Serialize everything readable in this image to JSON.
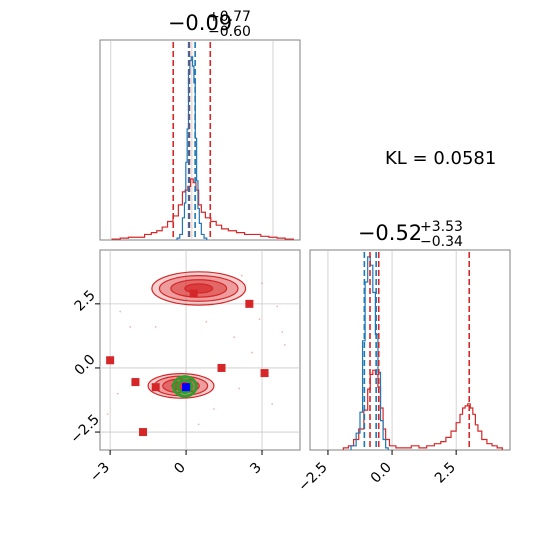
{
  "colors": {
    "red": "#d62728",
    "blue": "#1f77b4",
    "green": "#2ca02c",
    "marker_blue": "#0000ff",
    "grid": "#c8c8c8",
    "frame": "#808080"
  },
  "annotation": {
    "kl_text": "KL = 0.0581"
  },
  "chart_data": [
    {
      "type": "histogram",
      "panel": "top-left marginal",
      "title": {
        "main": "−0.09",
        "sup": "+0.77",
        "sub": "−0.60"
      },
      "xlim": [
        -3.4,
        4.0
      ],
      "grid": true,
      "tick_labels_shown": false,
      "series": [
        {
          "color": "#d62728",
          "bins": {
            "x": [
              -2.8,
              -2.5,
              -2.2,
              -1.9,
              -1.6,
              -1.4,
              -1.2,
              -1.0,
              -0.8,
              -0.6,
              -0.4,
              -0.3,
              -0.2,
              -0.1,
              0.0,
              0.1,
              0.2,
              0.3,
              0.4,
              0.6,
              0.8,
              1.0,
              1.2,
              1.5,
              1.8,
              2.1,
              2.4,
              2.7,
              3.0,
              3.3,
              3.6
            ],
            "h": [
              0.005,
              0.01,
              0.015,
              0.015,
              0.03,
              0.04,
              0.05,
              0.07,
              0.1,
              0.13,
              0.19,
              0.26,
              0.27,
              0.29,
              0.33,
              0.31,
              0.27,
              0.19,
              0.15,
              0.12,
              0.1,
              0.08,
              0.06,
              0.05,
              0.04,
              0.03,
              0.03,
              0.02,
              0.015,
              0.01,
              0.005
            ]
          }
        },
        {
          "color": "#1f77b4",
          "bins": {
            "x": [
              -0.5,
              -0.4,
              -0.3,
              -0.25,
              -0.2,
              -0.15,
              -0.1,
              -0.05,
              0.0,
              0.05,
              0.1,
              0.15,
              0.2,
              0.25,
              0.3,
              0.4,
              0.5
            ],
            "h": [
              0.01,
              0.03,
              0.12,
              0.2,
              0.42,
              0.6,
              0.9,
              0.97,
              0.99,
              0.94,
              0.85,
              0.55,
              0.32,
              0.17,
              0.09,
              0.03,
              0.01
            ]
          }
        }
      ],
      "vlines": [
        {
          "x": -0.69,
          "color": "#d62728"
        },
        {
          "x": -0.09,
          "color": "#d62728"
        },
        {
          "x": 0.68,
          "color": "#d62728"
        },
        {
          "x": -0.12,
          "color": "#1f77b4"
        },
        {
          "x": 0.12,
          "color": "#1f77b4"
        }
      ]
    },
    {
      "type": "scatter",
      "panel": "bottom-left joint",
      "xlim": [
        -3.4,
        4.5
      ],
      "ylim": [
        -3.2,
        4.6
      ],
      "xticks": [
        -3,
        0,
        3
      ],
      "xtick_labels": [
        "−3",
        "0",
        "3"
      ],
      "yticks": [
        -2.5,
        0.0,
        2.5
      ],
      "ytick_labels": [
        "−2.5",
        "0.0",
        "2.5"
      ],
      "grid": true,
      "density_regions": [
        {
          "color": "#d62728",
          "center": [
            0.5,
            3.1
          ],
          "radii": [
            [
              1.85,
              0.65
            ],
            [
              1.55,
              0.5
            ],
            [
              1.1,
              0.34
            ],
            [
              0.55,
              0.18
            ]
          ],
          "opacities": [
            0.22,
            0.3,
            0.45,
            0.65
          ]
        },
        {
          "color": "#d62728",
          "center": [
            -0.2,
            -0.7
          ],
          "radii": [
            [
              1.3,
              0.48
            ],
            [
              1.05,
              0.38
            ],
            [
              0.72,
              0.27
            ],
            [
              0.36,
              0.15
            ]
          ],
          "opacities": [
            0.22,
            0.3,
            0.45,
            0.65
          ]
        }
      ],
      "points": [
        {
          "x": 0.3,
          "y": 2.9,
          "color": "#d62728"
        },
        {
          "x": 2.5,
          "y": 2.5,
          "color": "#d62728"
        },
        {
          "x": -3.0,
          "y": 0.3,
          "color": "#d62728"
        },
        {
          "x": 1.4,
          "y": 0.0,
          "color": "#d62728"
        },
        {
          "x": 3.1,
          "y": -0.2,
          "color": "#d62728"
        },
        {
          "x": -2.0,
          "y": -0.55,
          "color": "#d62728"
        },
        {
          "x": -1.2,
          "y": -0.75,
          "color": "#d62728"
        },
        {
          "x": -1.7,
          "y": -2.5,
          "color": "#d62728"
        },
        {
          "x": 0.0,
          "y": -0.75,
          "color": "#0000ff"
        }
      ],
      "green_contour": {
        "center": [
          -0.05,
          -0.72
        ],
        "radii": [
          [
            0.45,
            0.38
          ],
          [
            0.28,
            0.24
          ]
        ]
      }
    },
    {
      "type": "histogram",
      "panel": "bottom-right marginal",
      "title": {
        "main": "−0.52",
        "sup": "+3.53",
        "sub": "−0.34"
      },
      "xlim": [
        -3.2,
        4.6
      ],
      "xticks": [
        -2.5,
        0.0,
        2.5
      ],
      "xtick_labels": [
        "−2.5",
        "0.0",
        "2.5"
      ],
      "grid": true,
      "series": [
        {
          "color": "#d62728",
          "bins": {
            "x": [
              -1.8,
              -1.6,
              -1.4,
              -1.2,
              -1.0,
              -0.9,
              -0.8,
              -0.7,
              -0.6,
              -0.5,
              -0.4,
              -0.3,
              -0.2,
              0.0,
              0.3,
              0.6,
              0.9,
              1.2,
              1.5,
              1.8,
              2.0,
              2.2,
              2.4,
              2.6,
              2.7,
              2.8,
              2.9,
              3.0,
              3.1,
              3.2,
              3.3,
              3.4,
              3.6,
              3.8,
              4.0,
              4.2
            ],
            "h": [
              0.01,
              0.02,
              0.05,
              0.1,
              0.19,
              0.29,
              0.36,
              0.38,
              0.36,
              0.3,
              0.2,
              0.1,
              0.05,
              0.02,
              0.01,
              0.01,
              0.02,
              0.01,
              0.02,
              0.03,
              0.04,
              0.06,
              0.09,
              0.13,
              0.17,
              0.2,
              0.21,
              0.22,
              0.2,
              0.17,
              0.12,
              0.09,
              0.05,
              0.03,
              0.02,
              0.01
            ]
          }
        },
        {
          "color": "#1f77b4",
          "bins": {
            "x": [
              -1.5,
              -1.3,
              -1.2,
              -1.1,
              -1.0,
              -0.9,
              -0.8,
              -0.7,
              -0.6,
              -0.5,
              -0.4,
              -0.3,
              -0.2
            ],
            "h": [
              0.02,
              0.08,
              0.18,
              0.52,
              0.8,
              0.92,
              0.88,
              0.75,
              0.55,
              0.37,
              0.14,
              0.05,
              0.01
            ]
          }
        }
      ],
      "vlines": [
        {
          "x": -0.86,
          "color": "#d62728"
        },
        {
          "x": -0.52,
          "color": "#d62728"
        },
        {
          "x": 3.01,
          "color": "#d62728"
        },
        {
          "x": -1.08,
          "color": "#1f77b4"
        },
        {
          "x": -0.62,
          "color": "#1f77b4"
        }
      ]
    }
  ]
}
